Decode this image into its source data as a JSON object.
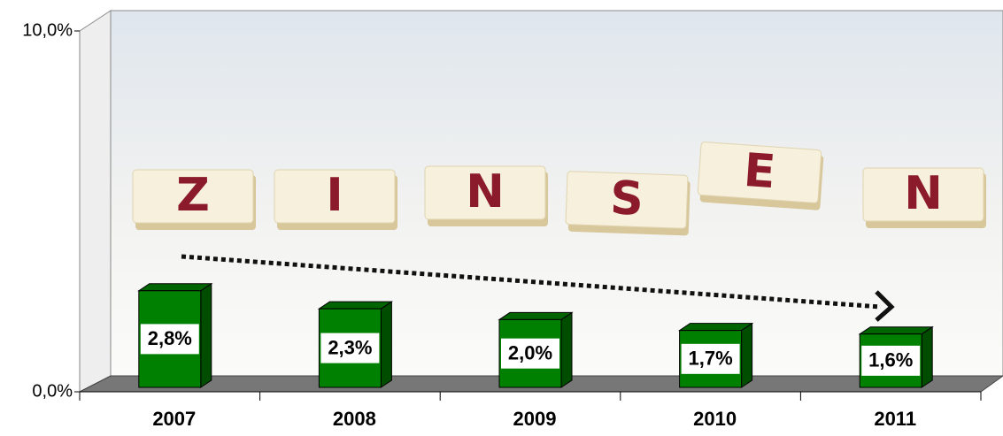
{
  "chart_data": {
    "type": "bar",
    "categories": [
      "2007",
      "2008",
      "2009",
      "2010",
      "2011"
    ],
    "values": [
      2.8,
      2.3,
      2.0,
      1.7,
      1.6
    ],
    "value_labels": [
      "2,8%",
      "2,3%",
      "2,0%",
      "1,7%",
      "1,6%"
    ],
    "color": "#008000",
    "ylim": [
      0,
      10
    ],
    "yticks": [
      {
        "value": 0,
        "label": "0,0%"
      },
      {
        "value": 10,
        "label": "10,0%"
      }
    ],
    "background_tiles": [
      "Z",
      "I",
      "N",
      "S",
      "E",
      "N"
    ]
  }
}
